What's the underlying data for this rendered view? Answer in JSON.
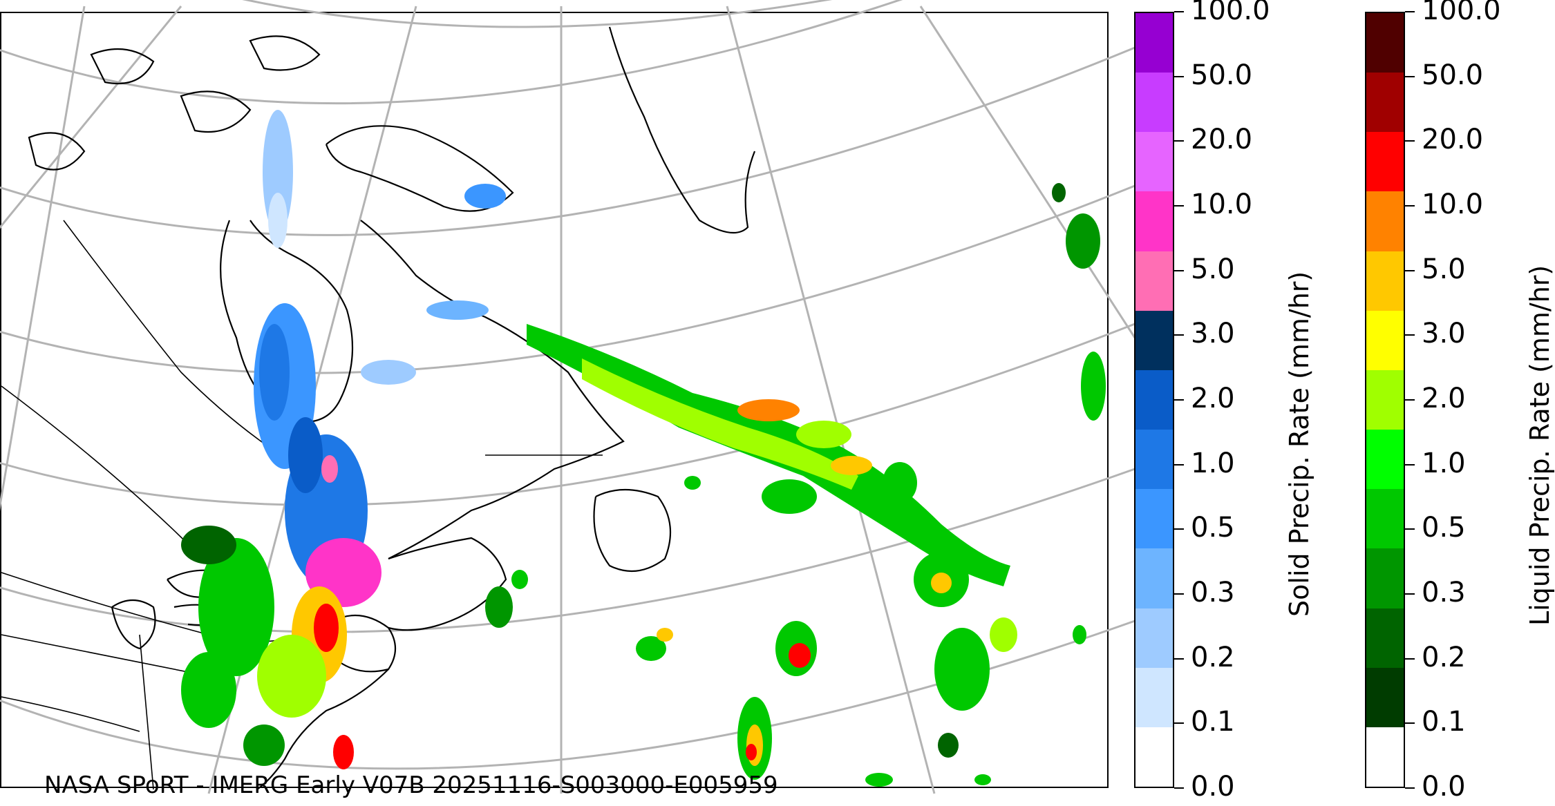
{
  "credit": "NASA SPoRT - IMERG Early V07B 20251116-S003000-E005959",
  "colorbar_ticks": [
    "0.0",
    "0.1",
    "0.2",
    "0.3",
    "0.5",
    "1.0",
    "2.0",
    "3.0",
    "5.0",
    "10.0",
    "20.0",
    "50.0",
    "100.0"
  ],
  "solid_colorbar": {
    "title": "Solid Precip. Rate (mm/hr)",
    "colors": [
      "#ffffff",
      "#cfe6ff",
      "#9ecbff",
      "#6db4ff",
      "#3b96ff",
      "#1e78e6",
      "#0a5cc8",
      "#00305e",
      "#ff6eb4",
      "#ff34c8",
      "#e664ff",
      "#c83cff",
      "#9600d2"
    ]
  },
  "liquid_colorbar": {
    "title": "Liquid Precip. Rate (mm/hr)",
    "colors": [
      "#ffffff",
      "#003c00",
      "#006400",
      "#009600",
      "#00c800",
      "#00ff00",
      "#a0ff00",
      "#ffff00",
      "#ffc800",
      "#ff8200",
      "#ff0000",
      "#a00000",
      "#500000"
    ]
  }
}
